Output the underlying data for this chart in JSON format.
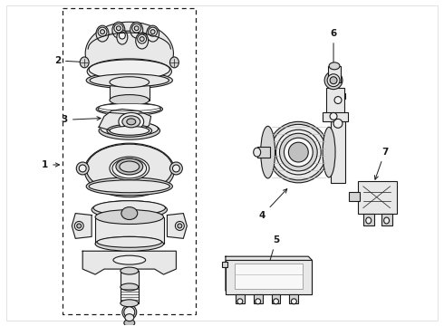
{
  "bg": "#ffffff",
  "lc": "#1a1a1a",
  "fig_w": 4.9,
  "fig_h": 3.6,
  "dpi": 100
}
